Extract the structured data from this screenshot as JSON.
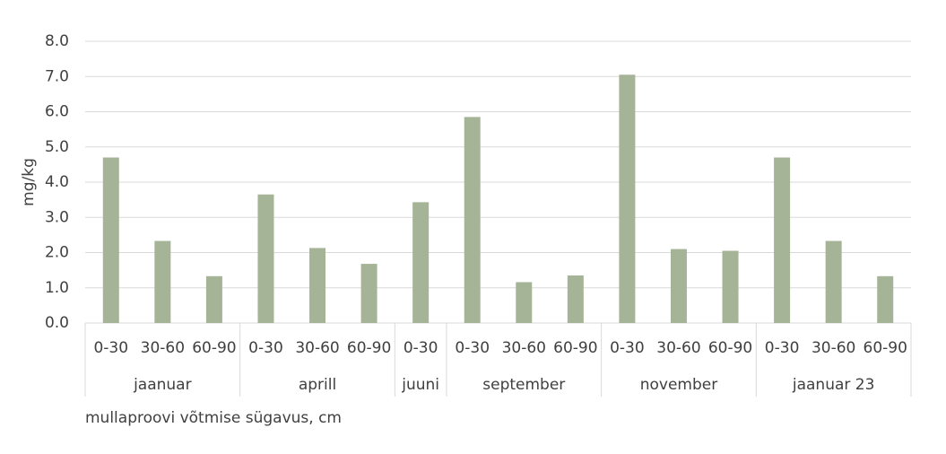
{
  "chart_data": {
    "type": "bar",
    "y_label": "mg/kg",
    "x_label": "mullaproovi võtmise sügavus, cm",
    "color": "#a5b396",
    "grid": true,
    "ylim": [
      0,
      8
    ],
    "yticks": [
      {
        "value": 0,
        "label": "0.0"
      },
      {
        "value": 1,
        "label": "1.0"
      },
      {
        "value": 2,
        "label": "2.0"
      },
      {
        "value": 3,
        "label": "3.0"
      },
      {
        "value": 4,
        "label": "4.0"
      },
      {
        "value": 5,
        "label": "5.0"
      },
      {
        "value": 6,
        "label": "6.0"
      },
      {
        "value": 7,
        "label": "7.0"
      },
      {
        "value": 8,
        "label": "8.0"
      }
    ],
    "groups": [
      {
        "name": "jaanuar",
        "categories": [
          "0-30",
          "30-60",
          "60-90"
        ],
        "values": [
          4.7,
          2.33,
          1.33
        ]
      },
      {
        "name": "aprill",
        "categories": [
          "0-30",
          "30-60",
          "60-90"
        ],
        "values": [
          3.65,
          2.13,
          1.68
        ]
      },
      {
        "name": "juuni",
        "categories": [
          "0-30"
        ],
        "values": [
          3.43
        ]
      },
      {
        "name": "september",
        "categories": [
          "0-30",
          "30-60",
          "60-90"
        ],
        "values": [
          5.85,
          1.16,
          1.35
        ]
      },
      {
        "name": "november",
        "categories": [
          "0-30",
          "30-60",
          "60-90"
        ],
        "values": [
          7.05,
          2.1,
          2.05
        ]
      },
      {
        "name": "jaanuar 23",
        "categories": [
          "0-30",
          "30-60",
          "60-90"
        ],
        "values": [
          4.7,
          2.33,
          1.33
        ]
      }
    ]
  }
}
